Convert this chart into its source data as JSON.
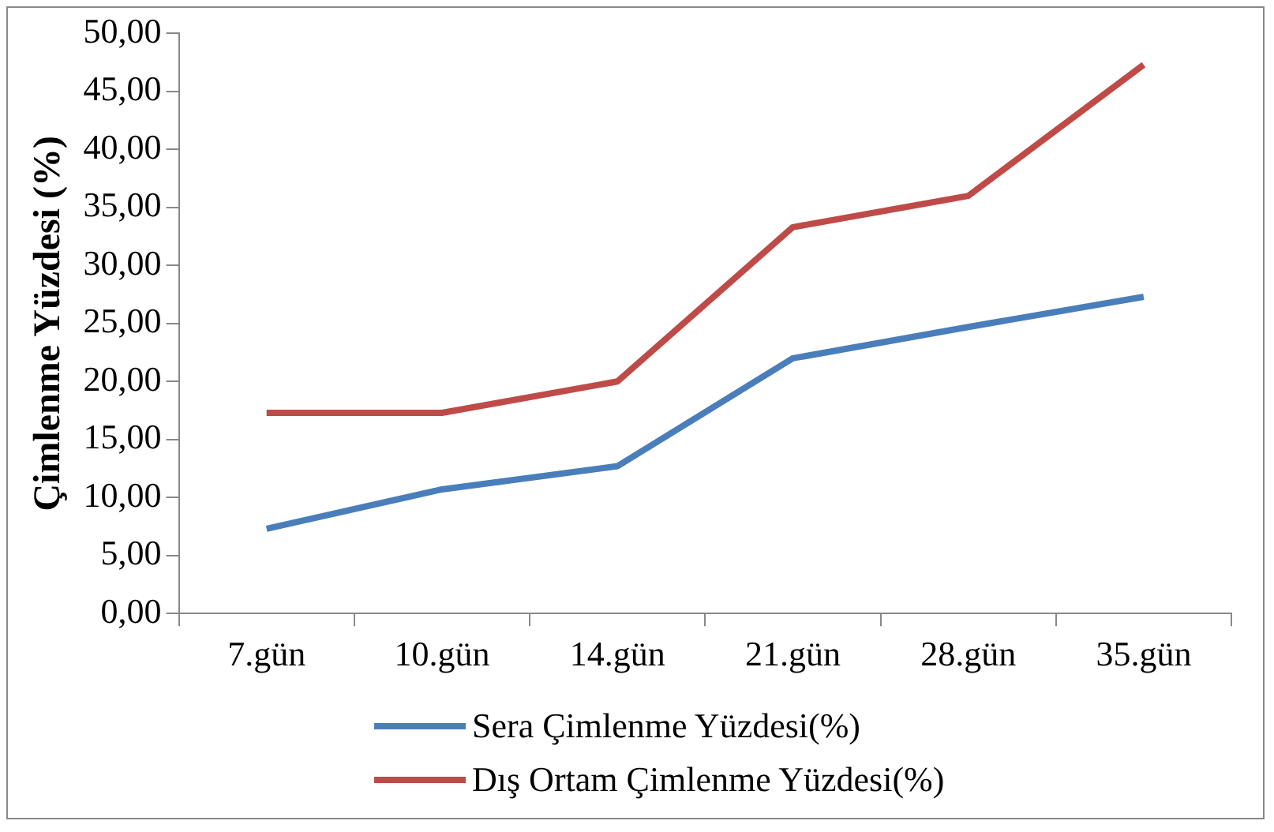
{
  "chart_data": {
    "type": "line",
    "ylabel": "Çimlenme Yüzdesi (%)",
    "categories": [
      "7.gün",
      "10.gün",
      "14.gün",
      "21.gün",
      "28.gün",
      "35.gün"
    ],
    "series": [
      {
        "name": "Sera Çimlenme Yüzdesi(%)",
        "color": "#4a7ebb",
        "values": [
          7.3,
          10.7,
          12.7,
          22,
          24.7,
          27.3
        ]
      },
      {
        "name": "Dış Ortam Çimlenme Yüzdesi(%)",
        "color": "#be4b48",
        "values": [
          17.3,
          17.3,
          20,
          33.3,
          36,
          47.3
        ]
      }
    ],
    "ylim": [
      0,
      50
    ],
    "yticks": [
      {
        "value": 0,
        "label": "0,00"
      },
      {
        "value": 5,
        "label": "5,00"
      },
      {
        "value": 10,
        "label": "10,00"
      },
      {
        "value": 15,
        "label": "15,00"
      },
      {
        "value": 20,
        "label": "20,00"
      },
      {
        "value": 25,
        "label": "25,00"
      },
      {
        "value": 30,
        "label": "30,00"
      },
      {
        "value": 35,
        "label": "35,00"
      },
      {
        "value": 40,
        "label": "40,00"
      },
      {
        "value": 45,
        "label": "45,00"
      },
      {
        "value": 50,
        "label": "50,00"
      }
    ],
    "grid": false,
    "legend": "bottom",
    "marker": "none",
    "line_style": "solid"
  }
}
